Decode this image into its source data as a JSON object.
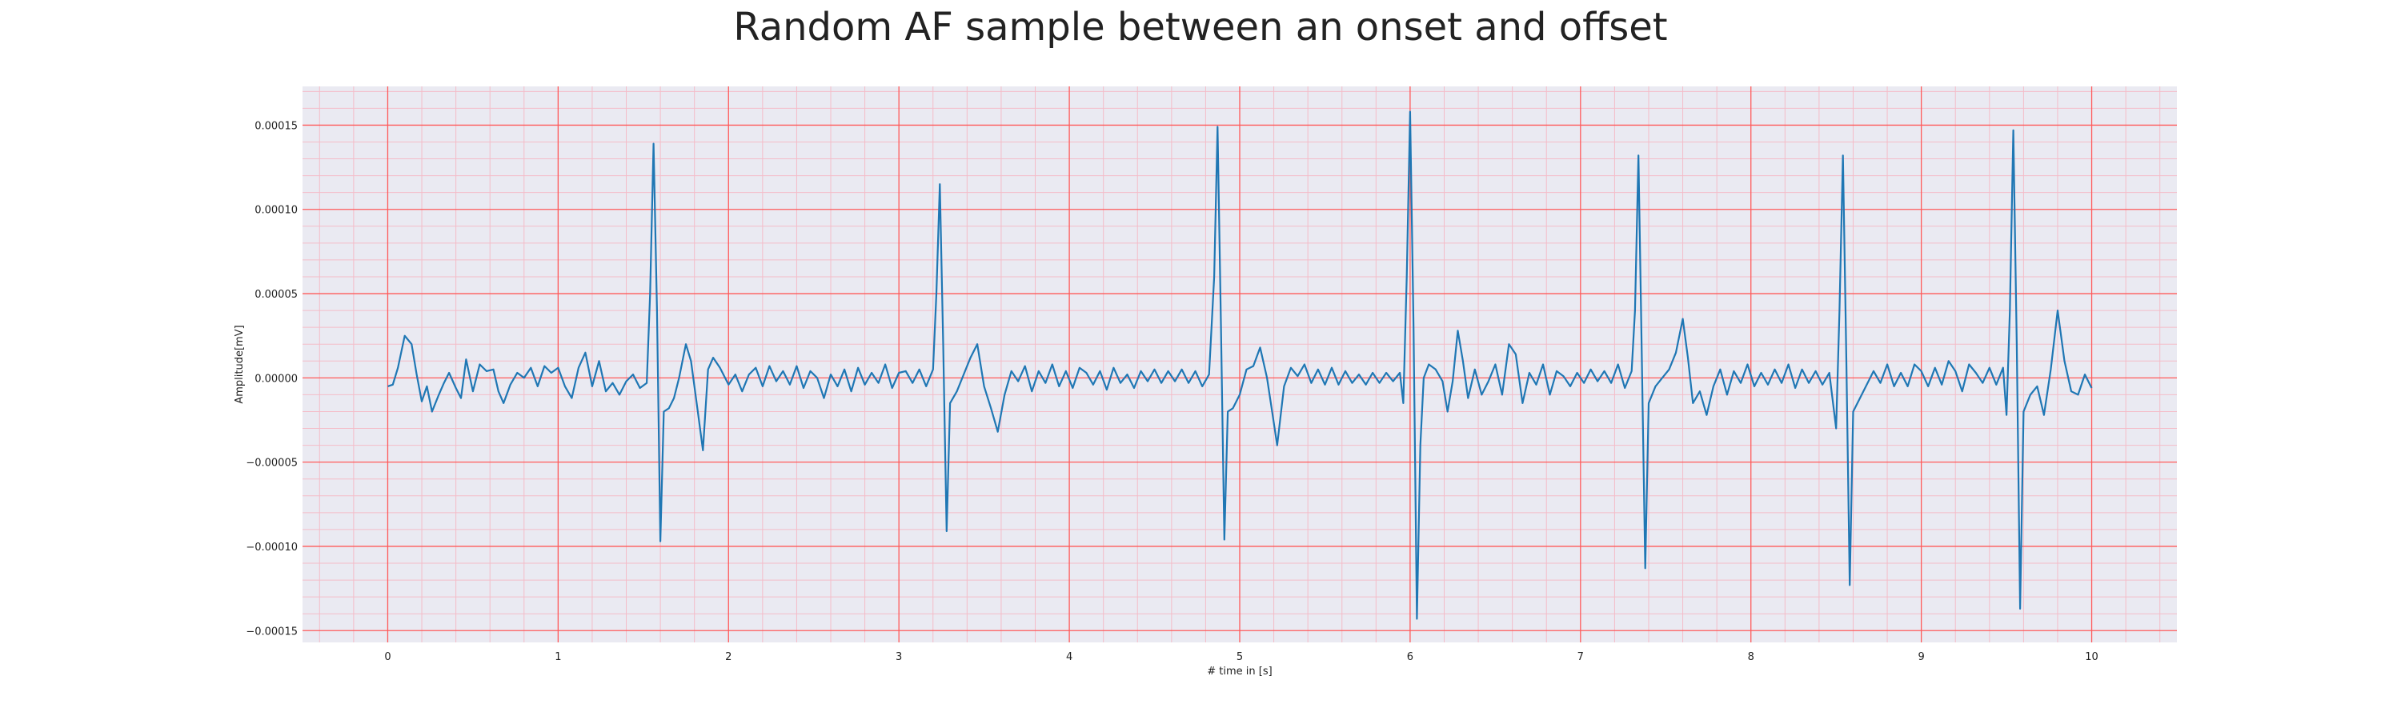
{
  "chart_data": {
    "type": "line",
    "title": "Random AF sample between an onset and offset",
    "xlabel": "# time in [s]",
    "ylabel": "Amplitude[mV]",
    "xlim": [
      -0.5,
      10.5
    ],
    "ylim": [
      -0.000157,
      0.000173
    ],
    "x_ticks": [
      0,
      1,
      2,
      3,
      4,
      5,
      6,
      7,
      8,
      9,
      10
    ],
    "x_tick_labels": [
      "0",
      "1",
      "2",
      "3",
      "4",
      "5",
      "6",
      "7",
      "8",
      "9",
      "10"
    ],
    "y_ticks": [
      -0.00015,
      -0.0001,
      -5e-05,
      0,
      5e-05,
      0.0001,
      0.00015
    ],
    "y_tick_labels": [
      "−0.00015",
      "−0.00010",
      "−0.00005",
      "0.00000",
      "0.00005",
      "0.00010",
      "0.00015"
    ],
    "grid": true,
    "minor_grid": true,
    "colors": {
      "line": "#1f77b4",
      "plot_background": "#eaeaf2",
      "major_grid": "#ff5a5a",
      "minor_grid": "#f4bcc8"
    },
    "series": [
      {
        "points": [
          [
            0.0,
            -5e-06
          ],
          [
            0.03,
            -4e-06
          ],
          [
            0.06,
            6e-06
          ],
          [
            0.1,
            2.5e-05
          ],
          [
            0.14,
            2e-05
          ],
          [
            0.17,
            2e-06
          ],
          [
            0.2,
            -1.4e-05
          ],
          [
            0.23,
            -5e-06
          ],
          [
            0.26,
            -2e-05
          ],
          [
            0.3,
            -1e-05
          ],
          [
            0.33,
            -3e-06
          ],
          [
            0.36,
            3e-06
          ],
          [
            0.4,
            -6e-06
          ],
          [
            0.43,
            -1.2e-05
          ],
          [
            0.46,
            1.1e-05
          ],
          [
            0.5,
            -8e-06
          ],
          [
            0.54,
            8e-06
          ],
          [
            0.58,
            4e-06
          ],
          [
            0.62,
            5e-06
          ],
          [
            0.65,
            -8e-06
          ],
          [
            0.68,
            -1.5e-05
          ],
          [
            0.72,
            -4e-06
          ],
          [
            0.76,
            3e-06
          ],
          [
            0.8,
            0.0
          ],
          [
            0.84,
            6e-06
          ],
          [
            0.88,
            -5e-06
          ],
          [
            0.92,
            7e-06
          ],
          [
            0.96,
            3e-06
          ],
          [
            1.0,
            6e-06
          ],
          [
            1.04,
            -5e-06
          ],
          [
            1.08,
            -1.2e-05
          ],
          [
            1.12,
            6e-06
          ],
          [
            1.16,
            1.5e-05
          ],
          [
            1.2,
            -5e-06
          ],
          [
            1.24,
            1e-05
          ],
          [
            1.28,
            -8e-06
          ],
          [
            1.32,
            -3e-06
          ],
          [
            1.36,
            -1e-05
          ],
          [
            1.4,
            -2e-06
          ],
          [
            1.44,
            2e-06
          ],
          [
            1.48,
            -6e-06
          ],
          [
            1.52,
            -3e-06
          ],
          [
            1.54,
            5e-05
          ],
          [
            1.56,
            0.000139
          ],
          [
            1.58,
            4e-05
          ],
          [
            1.6,
            -9.7e-05
          ],
          [
            1.62,
            -2e-05
          ],
          [
            1.65,
            -1.8e-05
          ],
          [
            1.68,
            -1.2e-05
          ],
          [
            1.71,
            0.0
          ],
          [
            1.75,
            2e-05
          ],
          [
            1.78,
            1e-05
          ],
          [
            1.82,
            -2e-05
          ],
          [
            1.85,
            -4.3e-05
          ],
          [
            1.88,
            5e-06
          ],
          [
            1.91,
            1.2e-05
          ],
          [
            1.95,
            6e-06
          ],
          [
            2.0,
            -4e-06
          ],
          [
            2.04,
            2e-06
          ],
          [
            2.08,
            -8e-06
          ],
          [
            2.12,
            2e-06
          ],
          [
            2.16,
            6e-06
          ],
          [
            2.2,
            -5e-06
          ],
          [
            2.24,
            7e-06
          ],
          [
            2.28,
            -2e-06
          ],
          [
            2.32,
            4e-06
          ],
          [
            2.36,
            -4e-06
          ],
          [
            2.4,
            7e-06
          ],
          [
            2.44,
            -6e-06
          ],
          [
            2.48,
            4e-06
          ],
          [
            2.52,
            0.0
          ],
          [
            2.56,
            -1.2e-05
          ],
          [
            2.6,
            2e-06
          ],
          [
            2.64,
            -5e-06
          ],
          [
            2.68,
            5e-06
          ],
          [
            2.72,
            -8e-06
          ],
          [
            2.76,
            6e-06
          ],
          [
            2.8,
            -4e-06
          ],
          [
            2.84,
            3e-06
          ],
          [
            2.88,
            -3e-06
          ],
          [
            2.92,
            8e-06
          ],
          [
            2.96,
            -6e-06
          ],
          [
            3.0,
            3e-06
          ],
          [
            3.04,
            4e-06
          ],
          [
            3.08,
            -3e-06
          ],
          [
            3.12,
            5e-06
          ],
          [
            3.16,
            -5e-06
          ],
          [
            3.2,
            5e-06
          ],
          [
            3.22,
            5e-05
          ],
          [
            3.24,
            0.000115
          ],
          [
            3.26,
            2e-05
          ],
          [
            3.28,
            -9.1e-05
          ],
          [
            3.3,
            -1.5e-05
          ],
          [
            3.34,
            -8e-06
          ],
          [
            3.38,
            2e-06
          ],
          [
            3.42,
            1.2e-05
          ],
          [
            3.46,
            2e-05
          ],
          [
            3.5,
            -5e-06
          ],
          [
            3.54,
            -1.8e-05
          ],
          [
            3.58,
            -3.2e-05
          ],
          [
            3.62,
            -1e-05
          ],
          [
            3.66,
            4e-06
          ],
          [
            3.7,
            -2e-06
          ],
          [
            3.74,
            7e-06
          ],
          [
            3.78,
            -8e-06
          ],
          [
            3.82,
            4e-06
          ],
          [
            3.86,
            -3e-06
          ],
          [
            3.9,
            8e-06
          ],
          [
            3.94,
            -5e-06
          ],
          [
            3.98,
            4e-06
          ],
          [
            4.02,
            -6e-06
          ],
          [
            4.06,
            6e-06
          ],
          [
            4.1,
            3e-06
          ],
          [
            4.14,
            -4e-06
          ],
          [
            4.18,
            4e-06
          ],
          [
            4.22,
            -7e-06
          ],
          [
            4.26,
            6e-06
          ],
          [
            4.3,
            -3e-06
          ],
          [
            4.34,
            2e-06
          ],
          [
            4.38,
            -6e-06
          ],
          [
            4.42,
            4e-06
          ],
          [
            4.46,
            -2e-06
          ],
          [
            4.5,
            5e-06
          ],
          [
            4.54,
            -3e-06
          ],
          [
            4.58,
            4e-06
          ],
          [
            4.62,
            -2e-06
          ],
          [
            4.66,
            5e-06
          ],
          [
            4.7,
            -3e-06
          ],
          [
            4.74,
            4e-06
          ],
          [
            4.78,
            -5e-06
          ],
          [
            4.82,
            2e-06
          ],
          [
            4.85,
            6e-05
          ],
          [
            4.87,
            0.000149
          ],
          [
            4.89,
            3e-05
          ],
          [
            4.91,
            -9.6e-05
          ],
          [
            4.93,
            -2e-05
          ],
          [
            4.96,
            -1.8e-05
          ],
          [
            5.0,
            -1e-05
          ],
          [
            5.04,
            5e-06
          ],
          [
            5.08,
            7e-06
          ],
          [
            5.12,
            1.8e-05
          ],
          [
            5.16,
            0.0
          ],
          [
            5.19,
            -2e-05
          ],
          [
            5.22,
            -4e-05
          ],
          [
            5.26,
            -5e-06
          ],
          [
            5.3,
            6e-06
          ],
          [
            5.34,
            1e-06
          ],
          [
            5.38,
            8e-06
          ],
          [
            5.42,
            -3e-06
          ],
          [
            5.46,
            5e-06
          ],
          [
            5.5,
            -4e-06
          ],
          [
            5.54,
            6e-06
          ],
          [
            5.58,
            -4e-06
          ],
          [
            5.62,
            4e-06
          ],
          [
            5.66,
            -3e-06
          ],
          [
            5.7,
            2e-06
          ],
          [
            5.74,
            -4e-06
          ],
          [
            5.78,
            3e-06
          ],
          [
            5.82,
            -3e-06
          ],
          [
            5.86,
            3e-06
          ],
          [
            5.9,
            -2e-06
          ],
          [
            5.94,
            3e-06
          ],
          [
            5.96,
            -1.5e-05
          ],
          [
            5.98,
            6e-05
          ],
          [
            6.0,
            0.000158
          ],
          [
            6.02,
            3e-05
          ],
          [
            6.04,
            -0.000143
          ],
          [
            6.06,
            -4e-05
          ],
          [
            6.08,
            0.0
          ],
          [
            6.11,
            8e-06
          ],
          [
            6.15,
            5e-06
          ],
          [
            6.19,
            -2e-06
          ],
          [
            6.22,
            -2e-05
          ],
          [
            6.25,
            -2e-06
          ],
          [
            6.28,
            2.8e-05
          ],
          [
            6.31,
            1e-05
          ],
          [
            6.34,
            -1.2e-05
          ],
          [
            6.38,
            5e-06
          ],
          [
            6.42,
            -1e-05
          ],
          [
            6.46,
            -2e-06
          ],
          [
            6.5,
            8e-06
          ],
          [
            6.54,
            -1e-05
          ],
          [
            6.58,
            2e-05
          ],
          [
            6.62,
            1.4e-05
          ],
          [
            6.66,
            -1.5e-05
          ],
          [
            6.7,
            3e-06
          ],
          [
            6.74,
            -4e-06
          ],
          [
            6.78,
            8e-06
          ],
          [
            6.82,
            -1e-05
          ],
          [
            6.86,
            4e-06
          ],
          [
            6.9,
            1e-06
          ],
          [
            6.94,
            -5e-06
          ],
          [
            6.98,
            3e-06
          ],
          [
            7.02,
            -3e-06
          ],
          [
            7.06,
            5e-06
          ],
          [
            7.1,
            -2e-06
          ],
          [
            7.14,
            4e-06
          ],
          [
            7.18,
            -3e-06
          ],
          [
            7.22,
            8e-06
          ],
          [
            7.26,
            -6e-06
          ],
          [
            7.3,
            4e-06
          ],
          [
            7.32,
            4e-05
          ],
          [
            7.34,
            0.000132
          ],
          [
            7.36,
            1e-05
          ],
          [
            7.38,
            -0.000113
          ],
          [
            7.4,
            -1.5e-05
          ],
          [
            7.44,
            -5e-06
          ],
          [
            7.48,
            0.0
          ],
          [
            7.52,
            5e-06
          ],
          [
            7.56,
            1.5e-05
          ],
          [
            7.6,
            3.5e-05
          ],
          [
            7.63,
            1.2e-05
          ],
          [
            7.66,
            -1.5e-05
          ],
          [
            7.7,
            -8e-06
          ],
          [
            7.74,
            -2.2e-05
          ],
          [
            7.78,
            -5e-06
          ],
          [
            7.82,
            5e-06
          ],
          [
            7.86,
            -1e-05
          ],
          [
            7.9,
            4e-06
          ],
          [
            7.94,
            -3e-06
          ],
          [
            7.98,
            8e-06
          ],
          [
            8.02,
            -5e-06
          ],
          [
            8.06,
            3e-06
          ],
          [
            8.1,
            -4e-06
          ],
          [
            8.14,
            5e-06
          ],
          [
            8.18,
            -3e-06
          ],
          [
            8.22,
            8e-06
          ],
          [
            8.26,
            -6e-06
          ],
          [
            8.3,
            5e-06
          ],
          [
            8.34,
            -3e-06
          ],
          [
            8.38,
            4e-06
          ],
          [
            8.42,
            -4e-06
          ],
          [
            8.46,
            3e-06
          ],
          [
            8.5,
            -3e-05
          ],
          [
            8.52,
            4e-05
          ],
          [
            8.54,
            0.000132
          ],
          [
            8.56,
            1e-05
          ],
          [
            8.58,
            -0.000123
          ],
          [
            8.6,
            -2e-05
          ],
          [
            8.64,
            -1.2e-05
          ],
          [
            8.68,
            -4e-06
          ],
          [
            8.72,
            4e-06
          ],
          [
            8.76,
            -3e-06
          ],
          [
            8.8,
            8e-06
          ],
          [
            8.84,
            -5e-06
          ],
          [
            8.88,
            3e-06
          ],
          [
            8.92,
            -5e-06
          ],
          [
            8.96,
            8e-06
          ],
          [
            9.0,
            4e-06
          ],
          [
            9.04,
            -5e-06
          ],
          [
            9.08,
            6e-06
          ],
          [
            9.12,
            -4e-06
          ],
          [
            9.16,
            1e-05
          ],
          [
            9.2,
            4e-06
          ],
          [
            9.24,
            -8e-06
          ],
          [
            9.28,
            8e-06
          ],
          [
            9.32,
            3e-06
          ],
          [
            9.36,
            -3e-06
          ],
          [
            9.4,
            6e-06
          ],
          [
            9.44,
            -4e-06
          ],
          [
            9.48,
            6e-06
          ],
          [
            9.5,
            -2.2e-05
          ],
          [
            9.52,
            4e-05
          ],
          [
            9.54,
            0.000147
          ],
          [
            9.56,
            2e-05
          ],
          [
            9.58,
            -0.000137
          ],
          [
            9.6,
            -2e-05
          ],
          [
            9.64,
            -1e-05
          ],
          [
            9.68,
            -5e-06
          ],
          [
            9.72,
            -2.2e-05
          ],
          [
            9.76,
            5e-06
          ],
          [
            9.8,
            4e-05
          ],
          [
            9.84,
            1e-05
          ],
          [
            9.88,
            -8e-06
          ],
          [
            9.92,
            -1e-05
          ],
          [
            9.96,
            2e-06
          ],
          [
            10.0,
            -6e-06
          ]
        ]
      }
    ]
  }
}
